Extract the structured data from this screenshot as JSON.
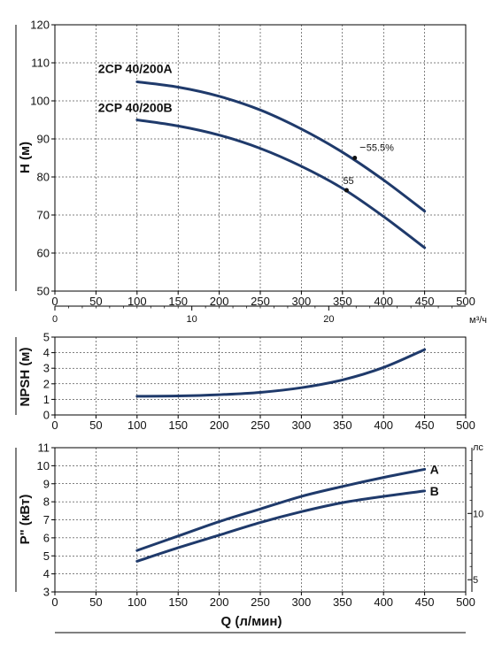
{
  "chart_data": [
    {
      "type": "line",
      "ylabel": "H (м)",
      "xlim": [
        0,
        500
      ],
      "ylim": [
        50,
        120
      ],
      "x_ticks": [
        0,
        50,
        100,
        150,
        200,
        250,
        300,
        350,
        400,
        450,
        500
      ],
      "y_ticks": [
        50,
        60,
        70,
        80,
        90,
        100,
        110,
        120
      ],
      "grid": true,
      "series": [
        {
          "name": "2CP 40/200A",
          "x": [
            100,
            150,
            200,
            250,
            300,
            350,
            400,
            450
          ],
          "y": [
            105,
            103.6,
            101.2,
            97.6,
            92.6,
            86.5,
            79.2,
            71
          ]
        },
        {
          "name": "2CP 40/200B",
          "x": [
            100,
            150,
            200,
            250,
            300,
            350,
            400,
            450
          ],
          "y": [
            95,
            93.4,
            91,
            87.5,
            82.8,
            77,
            69.6,
            61.4
          ]
        }
      ],
      "annotations": [
        {
          "text": "55.5%",
          "x": 365,
          "y": 85
        },
        {
          "text": "55",
          "x": 355,
          "y": 76.5
        }
      ],
      "secondary_x_axis": {
        "label": "м³/ч",
        "range": [
          0,
          30
        ],
        "ticks": [
          0,
          10,
          20
        ]
      }
    },
    {
      "type": "line",
      "ylabel": "NPSH (м)",
      "xlim": [
        0,
        500
      ],
      "ylim": [
        0,
        5
      ],
      "x_ticks": [
        0,
        50,
        100,
        150,
        200,
        250,
        300,
        350,
        400,
        450,
        500
      ],
      "y_ticks": [
        0,
        1,
        2,
        3,
        4,
        5
      ],
      "grid": true,
      "series": [
        {
          "name": "NPSH",
          "x": [
            100,
            150,
            200,
            250,
            300,
            350,
            400,
            450
          ],
          "y": [
            1.2,
            1.22,
            1.3,
            1.45,
            1.75,
            2.25,
            3.05,
            4.2
          ]
        }
      ]
    },
    {
      "type": "line",
      "ylabel": "P\" (кВт)",
      "xlabel": "Q (л/мин)",
      "xlim": [
        0,
        500
      ],
      "ylim": [
        3,
        11
      ],
      "x_ticks": [
        0,
        50,
        100,
        150,
        200,
        250,
        300,
        350,
        400,
        450,
        500
      ],
      "y_ticks": [
        3,
        4,
        5,
        6,
        7,
        8,
        9,
        10,
        11
      ],
      "grid": true,
      "series": [
        {
          "name": "A",
          "x": [
            100,
            150,
            200,
            250,
            300,
            350,
            400,
            450
          ],
          "y": [
            5.3,
            6.1,
            6.9,
            7.6,
            8.3,
            8.85,
            9.35,
            9.8
          ]
        },
        {
          "name": "B",
          "x": [
            100,
            150,
            200,
            250,
            300,
            350,
            400,
            450
          ],
          "y": [
            4.7,
            5.45,
            6.15,
            6.85,
            7.45,
            7.95,
            8.3,
            8.6
          ]
        }
      ],
      "secondary_y_axis": {
        "label": "лс",
        "range": [
          4.08,
          14.96
        ],
        "ticks": [
          5,
          10
        ]
      }
    }
  ]
}
